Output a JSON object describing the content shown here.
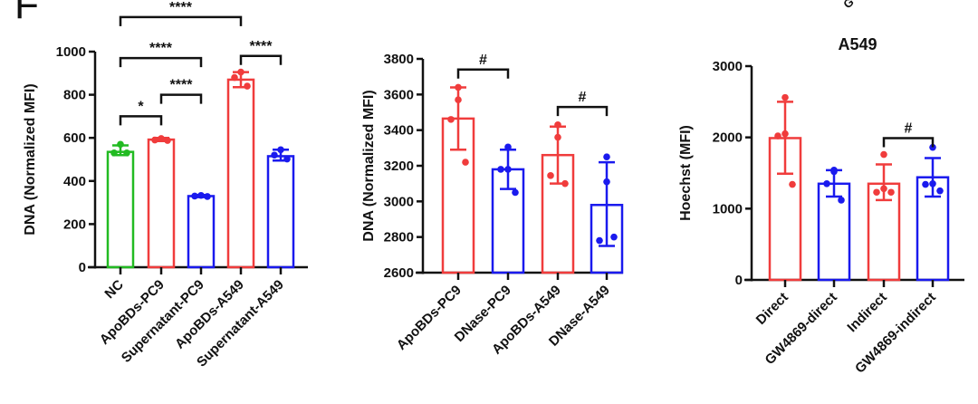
{
  "panel_letter": "F",
  "partial_top_text": "G",
  "colors": {
    "green": "#22bb22",
    "red": "#f03c3c",
    "blue": "#1a1aee",
    "black": "#111111"
  },
  "chart_data": [
    {
      "type": "bar",
      "title": "",
      "xlabel": "",
      "ylabel": "DNA (Normalized MFI)",
      "ylim": [
        0,
        1000
      ],
      "yticks": [
        "0",
        "200",
        "400",
        "600",
        "800",
        "1000"
      ],
      "ytick_values": [
        0,
        200,
        400,
        600,
        800,
        1000
      ],
      "categories": [
        "NC",
        "ApoBDs-PC9",
        "Supernatant-PC9",
        "ApoBDs-A549",
        "Supernatant-A549"
      ],
      "bar_colors": [
        "green",
        "red",
        "blue",
        "red",
        "blue"
      ],
      "values": [
        535,
        592,
        330,
        870,
        515
      ],
      "error_low": [
        520,
        585,
        325,
        835,
        495
      ],
      "error_high": [
        565,
        600,
        335,
        905,
        545
      ],
      "points": [
        [
          570,
          530,
          530
        ],
        [
          597,
          590,
          588
        ],
        [
          333,
          330,
          328
        ],
        [
          905,
          880,
          840
        ],
        [
          545,
          520,
          502
        ]
      ],
      "significance": [
        {
          "from": 0,
          "to": 1,
          "label": "*",
          "level": 700
        },
        {
          "from": 1,
          "to": 2,
          "label": "****",
          "level": 800
        },
        {
          "from": 0,
          "to": 2,
          "label": "****",
          "level": 970
        },
        {
          "from": 0,
          "to": 3,
          "label": "****",
          "level": 1160
        },
        {
          "from": 3,
          "to": 4,
          "label": "****",
          "level": 980
        }
      ]
    },
    {
      "type": "bar",
      "title": "",
      "xlabel": "",
      "ylabel": "DNA (Normalized MFI)",
      "ylim": [
        2600,
        3800
      ],
      "yticks": [
        "2600",
        "2800",
        "3000",
        "3200",
        "3400",
        "3600",
        "3800"
      ],
      "ytick_values": [
        2600,
        2800,
        3000,
        3200,
        3400,
        3600,
        3800
      ],
      "categories": [
        "ApoBDs-PC9",
        "DNase-PC9",
        "ApoBDs-A549",
        "DNase-A549"
      ],
      "bar_colors": [
        "red",
        "blue",
        "red",
        "blue"
      ],
      "values": [
        3465,
        3180,
        3260,
        2980
      ],
      "error_low": [
        3290,
        3070,
        3100,
        2750
      ],
      "error_high": [
        3640,
        3290,
        3420,
        3220
      ],
      "points": [
        [
          3640,
          3570,
          3460,
          3220
        ],
        [
          3305,
          3180,
          3180,
          3050
        ],
        [
          3430,
          3360,
          3145,
          3100
        ],
        [
          3250,
          3110,
          2780,
          2800
        ]
      ],
      "significance": [
        {
          "from": 0,
          "to": 1,
          "label": "#",
          "level": 3740
        },
        {
          "from": 2,
          "to": 3,
          "label": "#",
          "level": 3530
        }
      ]
    },
    {
      "type": "bar",
      "title": "A549",
      "xlabel": "",
      "ylabel": "Hoechst (MFI)",
      "ylim": [
        0,
        3000
      ],
      "yticks": [
        "0",
        "1000",
        "2000",
        "3000"
      ],
      "ytick_values": [
        0,
        1000,
        2000,
        3000
      ],
      "categories": [
        "Direct",
        "GW4869-direct",
        "Indirect",
        "GW4869-indirect"
      ],
      "bar_colors": [
        "red",
        "blue",
        "red",
        "blue"
      ],
      "values": [
        1990,
        1350,
        1350,
        1440
      ],
      "error_low": [
        1490,
        1170,
        1120,
        1170
      ],
      "error_high": [
        2500,
        1540,
        1620,
        1710
      ],
      "points": [
        [
          2560,
          2050,
          2020,
          1340
        ],
        [
          1540,
          1520,
          1350,
          1120
        ],
        [
          1760,
          1280,
          1230,
          1230
        ],
        [
          1860,
          1350,
          1340,
          1250
        ]
      ],
      "significance": [
        {
          "from": 2,
          "to": 3,
          "label": "#",
          "level": 1990
        }
      ]
    }
  ]
}
